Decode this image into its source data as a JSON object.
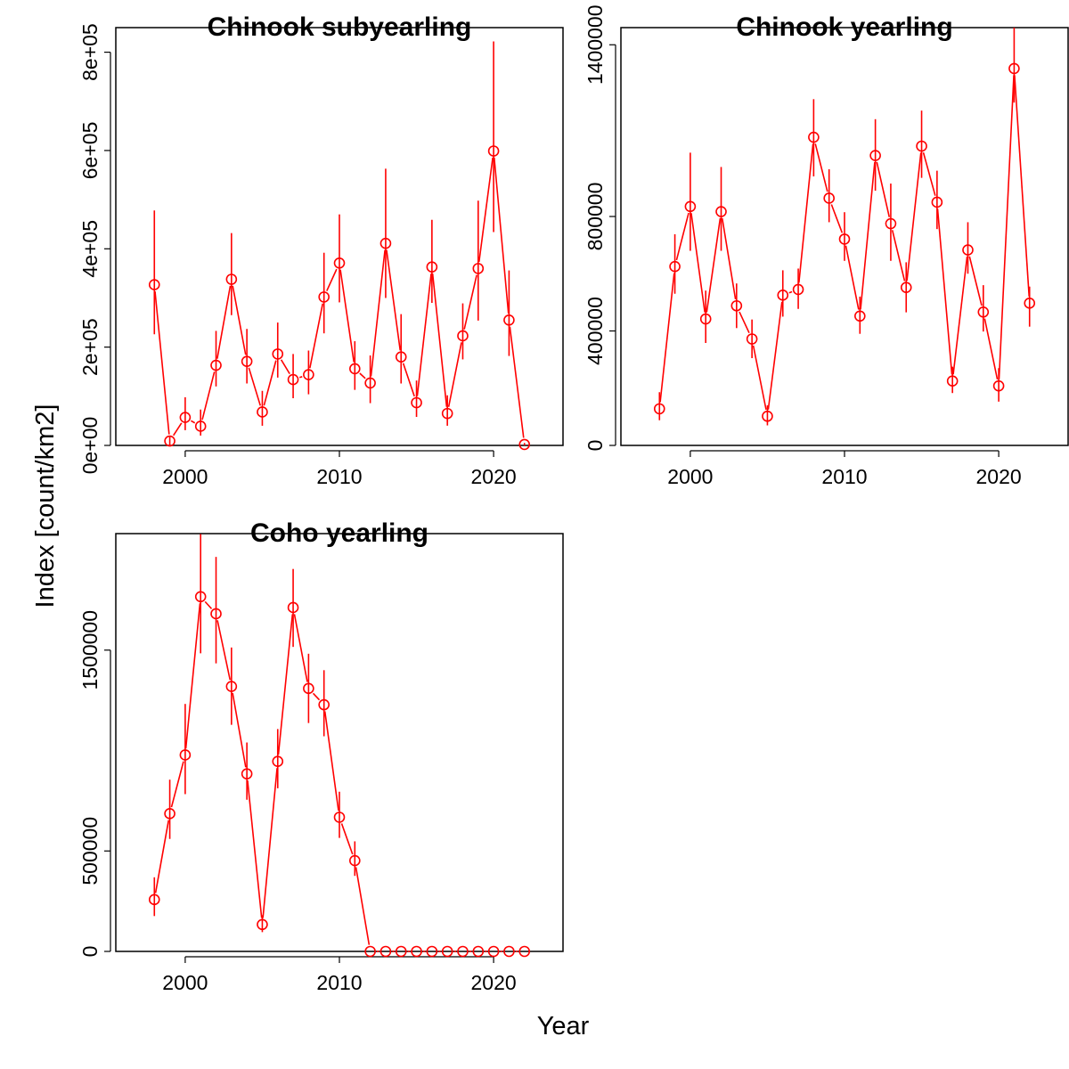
{
  "figure": {
    "xlabel": "Year",
    "ylabel": "Index [count/km2]"
  },
  "style": {
    "series_color": "#ff0000",
    "axis_color": "#000000",
    "marker": "open-circle"
  },
  "chart_data": [
    {
      "type": "line",
      "title": "Chinook subyearling",
      "xlabel": "Year",
      "ylabel": "Index [count/km2]",
      "xlim": [
        1995.5,
        2024.5
      ],
      "ylim": [
        0,
        850000
      ],
      "xticks": [
        2000,
        2010,
        2020
      ],
      "xtick_labels": [
        "2000",
        "2010",
        "2020"
      ],
      "yticks": [
        0,
        200000,
        400000,
        600000,
        800000
      ],
      "ytick_labels": [
        "0e+00",
        "2e+05",
        "4e+05",
        "6e+05",
        "8e+05"
      ],
      "grid": false,
      "error_bars": true,
      "series": [
        {
          "x": [
            1998,
            1999,
            2000,
            2001,
            2002,
            2003,
            2004,
            2005,
            2006,
            2007,
            2008,
            2009,
            2010,
            2011,
            2012,
            2013,
            2014,
            2015,
            2016,
            2017,
            2018,
            2019,
            2020,
            2021,
            2022
          ],
          "y": [
            327000,
            9000,
            57000,
            39000,
            163000,
            338000,
            171000,
            68000,
            186000,
            134000,
            144000,
            302000,
            371000,
            156000,
            127000,
            411000,
            180000,
            87000,
            363000,
            65000,
            223000,
            360000,
            599000,
            255000,
            2000
          ],
          "lower": [
            226000,
            0,
            31000,
            20000,
            120000,
            265000,
            126000,
            40000,
            138000,
            96000,
            104000,
            228000,
            291000,
            113000,
            86000,
            300000,
            126000,
            58000,
            290000,
            40000,
            175000,
            254000,
            434000,
            182000,
            0
          ],
          "upper": [
            478000,
            18000,
            98000,
            73000,
            233000,
            432000,
            237000,
            111000,
            250000,
            186000,
            193000,
            392000,
            470000,
            212000,
            183000,
            563000,
            267000,
            132000,
            459000,
            102000,
            289000,
            498000,
            822000,
            356000,
            5000
          ]
        }
      ]
    },
    {
      "type": "line",
      "title": "Chinook yearling",
      "xlabel": "Year",
      "ylabel": "Index [count/km2]",
      "xlim": [
        1995.5,
        2024.5
      ],
      "ylim": [
        0,
        1460000
      ],
      "xticks": [
        2000,
        2010,
        2020
      ],
      "xtick_labels": [
        "2000",
        "2010",
        "2020"
      ],
      "yticks": [
        0,
        400000,
        800000,
        1400000
      ],
      "ytick_labels": [
        "0",
        "400000",
        "800000",
        "1400000"
      ],
      "grid": false,
      "error_bars": true,
      "series": [
        {
          "x": [
            1998,
            1999,
            2000,
            2001,
            2002,
            2003,
            2004,
            2005,
            2006,
            2007,
            2008,
            2009,
            2010,
            2011,
            2012,
            2013,
            2014,
            2015,
            2016,
            2017,
            2018,
            2019,
            2020,
            2021,
            2022
          ],
          "y": [
            128000,
            625000,
            835000,
            442000,
            817000,
            488000,
            372000,
            102000,
            525000,
            545000,
            1077000,
            864000,
            721000,
            452000,
            1013000,
            775000,
            552000,
            1046000,
            850000,
            225000,
            683000,
            466000,
            208000,
            1317000,
            497000
          ],
          "lower": [
            88000,
            530000,
            680000,
            358000,
            680000,
            410000,
            305000,
            70000,
            450000,
            477000,
            940000,
            780000,
            645000,
            390000,
            890000,
            645000,
            465000,
            935000,
            756000,
            183000,
            600000,
            398000,
            153000,
            1198000,
            415000
          ],
          "upper": [
            186000,
            738000,
            1023000,
            541000,
            973000,
            566000,
            440000,
            140000,
            612000,
            618000,
            1210000,
            965000,
            815000,
            520000,
            1140000,
            915000,
            640000,
            1170000,
            960000,
            275000,
            780000,
            560000,
            270000,
            1460000,
            555000
          ]
        }
      ]
    },
    {
      "type": "line",
      "title": "Coho yearling",
      "xlabel": "Year",
      "ylabel": "Index [count/km2]",
      "xlim": [
        1995.5,
        2024.5
      ],
      "ylim": [
        0,
        2080000
      ],
      "xticks": [
        2000,
        2010,
        2020
      ],
      "xtick_labels": [
        "2000",
        "2010",
        "2020"
      ],
      "yticks": [
        0,
        500000,
        1500000
      ],
      "ytick_labels": [
        "0",
        "500000",
        "1500000"
      ],
      "grid": false,
      "error_bars": true,
      "series": [
        {
          "x": [
            1998,
            1999,
            2000,
            2001,
            2002,
            2003,
            2004,
            2005,
            2006,
            2007,
            2008,
            2009,
            2010,
            2011,
            2012,
            2013,
            2014,
            2015,
            2016,
            2017,
            2018,
            2019,
            2020,
            2021,
            2022
          ],
          "y": [
            258000,
            686000,
            978000,
            1766000,
            1681000,
            1319000,
            884000,
            134000,
            946000,
            1712000,
            1309000,
            1228000,
            668000,
            452000,
            0,
            0,
            0,
            0,
            0,
            0,
            0,
            0,
            0,
            0,
            0
          ],
          "lower": [
            176000,
            560000,
            783000,
            1484000,
            1434000,
            1128000,
            755000,
            96000,
            812000,
            1516000,
            1137000,
            1071000,
            565000,
            376000,
            0,
            0,
            0,
            0,
            0,
            0,
            0,
            0,
            0,
            0,
            0
          ],
          "upper": [
            369000,
            855000,
            1232000,
            2078000,
            1964000,
            1513000,
            1040000,
            180000,
            1107000,
            1904000,
            1482000,
            1400000,
            795000,
            548000,
            0,
            0,
            0,
            0,
            0,
            0,
            0,
            0,
            0,
            0,
            0
          ]
        }
      ]
    }
  ]
}
